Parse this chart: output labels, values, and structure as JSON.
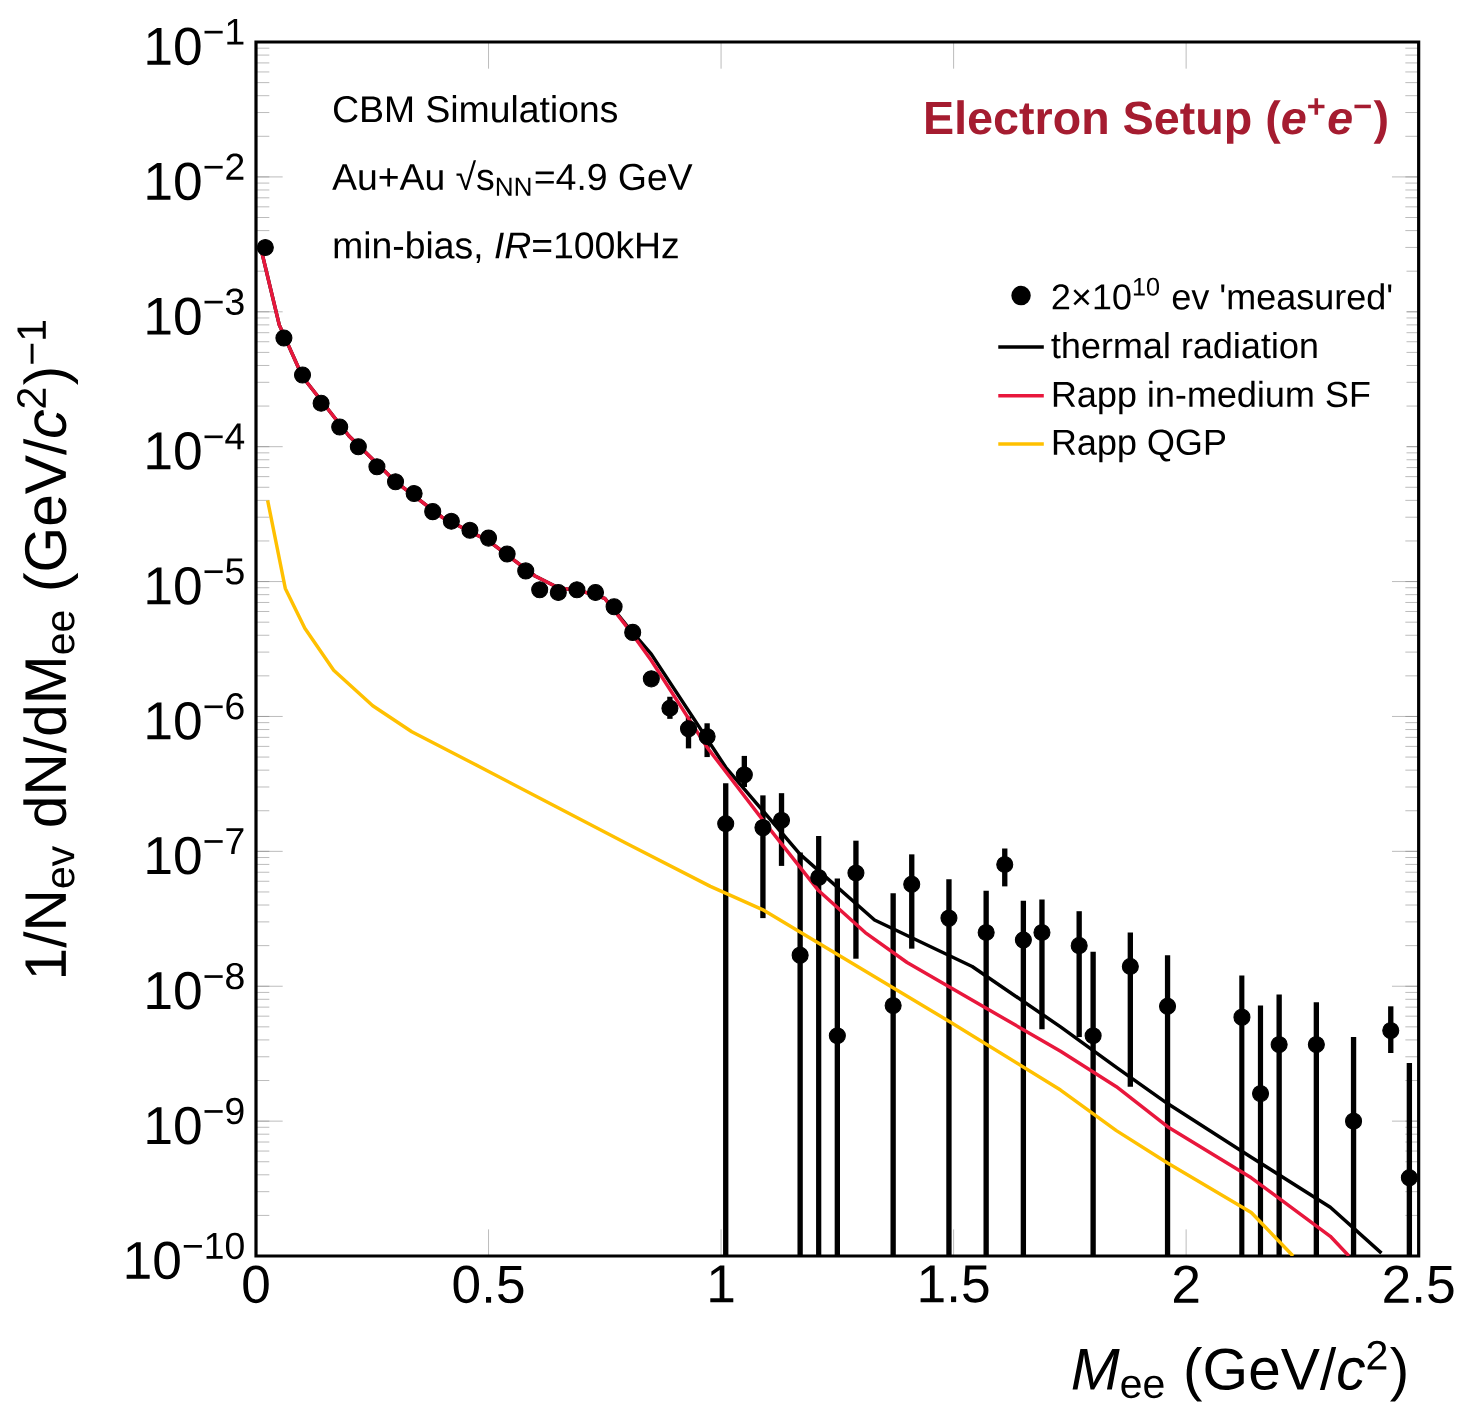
{
  "chart_data": {
    "type": "line",
    "xlabel": "*M*$_{ee}$ (GeV/*c*$^{2}$)",
    "ylabel": "1/N$_{ev}$ dN/dM$_{ee}$ (GeV/*c*$^{2}$)$^{−1}$",
    "annotations": [
      "CBM Simulations",
      "Au+Au √s$_{NN}$=4.9 GeV",
      "min-bias, *IR*=100kHz",
      "Electron Setup (*e*$^{+}$*e*$^{−}$)"
    ],
    "xlim": [
      0,
      2.5
    ],
    "ylim": [
      1e-10,
      0.1
    ],
    "log": "y",
    "xticks": [
      0,
      0.5,
      1,
      1.5,
      2,
      2.5
    ],
    "yticks": [
      {
        "value": 1e-10,
        "label": "10$^{−10}$"
      },
      {
        "value": 1e-09,
        "label": "10$^{−9}$"
      },
      {
        "value": 1e-08,
        "label": "10$^{−8}$"
      },
      {
        "value": 1e-07,
        "label": "10$^{−7}$"
      },
      {
        "value": 1e-06,
        "label": "10$^{−6}$"
      },
      {
        "value": 1e-05,
        "label": "10$^{−5}$"
      },
      {
        "value": 0.0001,
        "label": "10$^{−4}$"
      },
      {
        "value": 0.001,
        "label": "10$^{−3}$"
      },
      {
        "value": 0.01,
        "label": "10$^{−2}$"
      },
      {
        "value": 0.1,
        "label": "10$^{−1}$"
      }
    ],
    "legend": "top right",
    "series": [
      {
        "name": "2×10$^{10}$ ev 'measured'",
        "type": "scatter",
        "marker": "circle",
        "color": "#000000",
        "x": [
          0.02,
          0.06,
          0.1,
          0.14,
          0.18,
          0.22,
          0.26,
          0.3,
          0.34,
          0.38,
          0.42,
          0.46,
          0.5,
          0.54,
          0.58,
          0.61,
          0.65,
          0.69,
          0.73,
          0.77,
          0.81,
          0.85,
          0.89,
          0.93,
          0.97,
          1.01,
          1.05,
          1.09,
          1.13,
          1.17,
          1.21,
          1.25,
          1.29,
          1.37,
          1.41,
          1.49,
          1.57,
          1.61,
          1.65,
          1.69,
          1.77,
          1.8,
          1.88,
          1.96,
          2.12,
          2.16,
          2.2,
          2.28,
          2.36,
          2.44,
          2.48
        ],
        "values": [
          0.003,
          0.00064,
          0.00034,
          0.00021,
          0.00014,
          0.0001,
          7.1e-05,
          5.5e-05,
          4.5e-05,
          3.3e-05,
          2.8e-05,
          2.4e-05,
          2.1e-05,
          1.6e-05,
          1.2e-05,
          8.7e-06,
          8.3e-06,
          8.7e-06,
          8.3e-06,
          6.5e-06,
          4.2e-06,
          1.9e-06,
          1.15e-06,
          8.1e-07,
          7.1e-07,
          1.6e-07,
          3.7e-07,
          1.5e-07,
          1.7e-07,
          1.7e-08,
          6.4e-08,
          4.3e-09,
          6.9e-08,
          7.2e-09,
          5.7e-08,
          3.2e-08,
          2.5e-08,
          8e-08,
          2.2e-08,
          2.5e-08,
          2e-08,
          4.3e-09,
          1.4e-08,
          7.1e-09,
          5.9e-09,
          1.6e-09,
          3.7e-09,
          3.7e-09,
          1e-09,
          4.7e-09,
          3.8e-10
        ],
        "errors": [
          null,
          null,
          null,
          null,
          null,
          null,
          null,
          null,
          null,
          null,
          null,
          null,
          null,
          null,
          null,
          null,
          null,
          null,
          null,
          null,
          null,
          null,
          [
            9.6e-07,
            1.4e-06
          ],
          [
            5.8e-07,
            1e-06
          ],
          [
            5e-07,
            8.9e-07
          ],
          [
            1e-10,
            3.2e-07
          ],
          [
            3e-07,
            5.1e-07
          ],
          [
            3.2e-08,
            2.6e-07
          ],
          [
            7.8e-08,
            2.7e-07
          ],
          [
            1e-10,
            9.8e-08
          ],
          [
            1e-10,
            1.3e-07
          ],
          [
            1e-10,
            6.3e-08
          ],
          [
            1.6e-08,
            1.2e-07
          ],
          [
            1e-10,
            4.9e-08
          ],
          [
            1.9e-08,
            9.5e-08
          ],
          [
            1e-10,
            6.2e-08
          ],
          [
            1e-10,
            5.1e-08
          ],
          [
            5.5e-08,
            1.05e-07
          ],
          [
            1e-10,
            4.3e-08
          ],
          [
            4.8e-09,
            4.4e-08
          ],
          [
            4.2e-09,
            3.6e-08
          ],
          [
            1e-10,
            1.8e-08
          ],
          [
            1.8e-09,
            2.5e-08
          ],
          [
            1e-10,
            1.7e-08
          ],
          [
            1e-10,
            1.2e-08
          ],
          [
            1e-10,
            7.2e-09
          ],
          [
            1e-10,
            8.7e-09
          ],
          [
            1e-10,
            7.6e-09
          ],
          [
            1e-10,
            4.2e-09
          ],
          [
            3.2e-09,
            7.1e-09
          ],
          [
            1e-10,
            2.7e-09
          ]
        ]
      },
      {
        "name": "thermal radiation",
        "line_style": "solid",
        "color": "#000000",
        "x": [
          0.01,
          0.05,
          0.1,
          0.2,
          0.3,
          0.4,
          0.5,
          0.6,
          0.65,
          0.7,
          0.75,
          0.8,
          0.85,
          1.01,
          1.17,
          1.33,
          1.54,
          1.73,
          1.85,
          1.96,
          2.14,
          2.31,
          2.42
        ],
        "values": [
          0.003,
          0.0008,
          0.00033,
          0.00012,
          5.5e-05,
          3e-05,
          2e-05,
          1.1e-05,
          9e-06,
          8.5e-06,
          7.5e-06,
          4.6e-06,
          2.9e-06,
          4.2e-07,
          9.5e-08,
          3.1e-08,
          1.4e-08,
          5e-09,
          2.5e-09,
          1.35e-09,
          5.4e-10,
          2.3e-10,
          1.05e-10
        ]
      },
      {
        "name": "Rapp in-medium SF",
        "line_style": "solid",
        "color": "#e8173c",
        "x": [
          0.01,
          0.05,
          0.1,
          0.2,
          0.3,
          0.4,
          0.5,
          0.6,
          0.65,
          0.7,
          0.75,
          0.8,
          0.85,
          0.97,
          1.09,
          1.21,
          1.31,
          1.4,
          1.73,
          1.85,
          1.96,
          2.14,
          2.31,
          2.35
        ],
        "values": [
          0.003,
          0.0008,
          0.00033,
          0.00012,
          5.5e-05,
          3e-05,
          2e-05,
          1.1e-05,
          9e-06,
          8.5e-06,
          7.5e-06,
          4.5e-06,
          2.6e-06,
          5.9e-07,
          1.7e-07,
          5.1e-08,
          2.5e-08,
          1.5e-08,
          3.3e-09,
          1.8e-09,
          9.1e-10,
          3.8e-10,
          1.4e-10,
          1e-10
        ]
      },
      {
        "name": "Rapp QGP",
        "line_style": "solid",
        "color": "#ffc000",
        "x": [
          0.025,
          0.063,
          0.105,
          0.167,
          0.251,
          0.335,
          0.461,
          0.628,
          0.796,
          0.977,
          1.089,
          1.49,
          1.73,
          1.85,
          1.96,
          2.14,
          2.23
        ],
        "values": [
          4e-05,
          8.9e-06,
          4.5e-06,
          2.2e-06,
          1.2e-06,
          7.7e-07,
          4.6e-07,
          2.3e-07,
          1.15e-07,
          5.5e-08,
          3.7e-08,
          5.5e-09,
          1.7e-09,
          8.5e-10,
          4.9e-10,
          2.1e-10,
          1e-10
        ]
      }
    ]
  }
}
